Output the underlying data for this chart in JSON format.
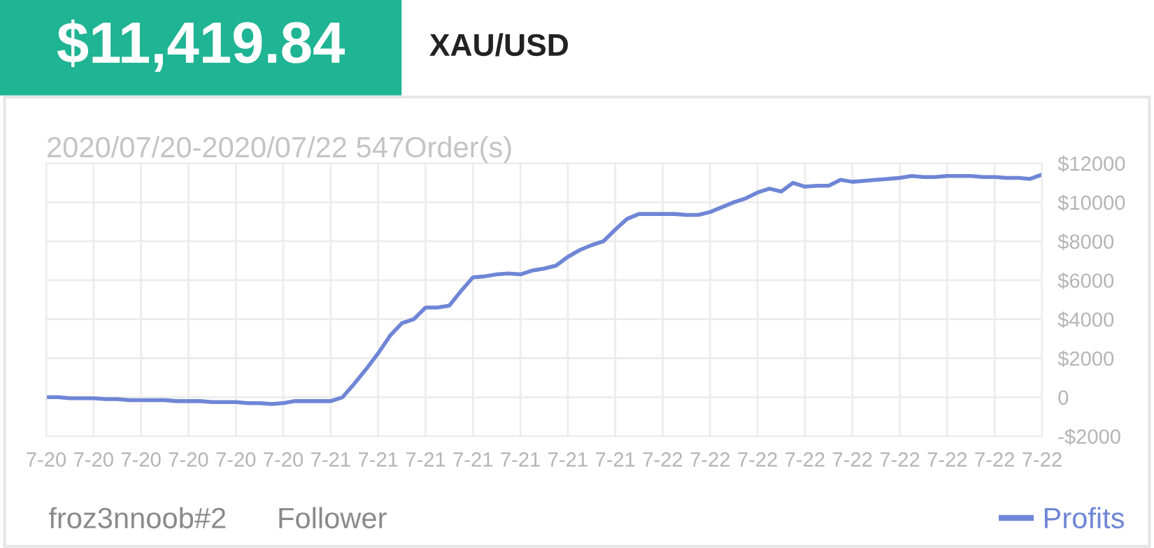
{
  "chart_data": {
    "type": "line",
    "title": "$11,419.84",
    "subtitle": "XAU/USD",
    "annotations": [
      "2020/07/20-2020/07/22 547Order(s)",
      "froz3nnoob#2",
      "Follower"
    ],
    "categories": [
      "7-20",
      null,
      null,
      null,
      "7-20",
      null,
      null,
      null,
      "7-20",
      null,
      null,
      null,
      "7-20",
      null,
      null,
      null,
      "7-20",
      null,
      null,
      null,
      "7-20",
      null,
      null,
      null,
      "7-21",
      null,
      null,
      null,
      "7-21",
      null,
      null,
      null,
      "7-21",
      null,
      null,
      null,
      "7-21",
      null,
      null,
      null,
      "7-21",
      null,
      null,
      null,
      "7-21",
      null,
      null,
      null,
      "7-21",
      null,
      null,
      null,
      "7-22",
      null,
      null,
      null,
      "7-22",
      null,
      null,
      null,
      "7-22",
      null,
      null,
      null,
      "7-22",
      null,
      null,
      null,
      "7-22",
      null,
      null,
      null,
      "7-22",
      null,
      null,
      null,
      "7-22",
      null,
      null,
      null,
      "7-22",
      null,
      null,
      null,
      "7-22"
    ],
    "ylim": [
      -2000,
      12000
    ],
    "yticks": [
      {
        "value": -2000,
        "label": "-$2000"
      },
      0,
      {
        "value": 2000,
        "label": "$2000"
      },
      {
        "value": 4000,
        "label": "$4000"
      },
      {
        "value": 6000,
        "label": "$6000"
      },
      {
        "value": 8000,
        "label": "$8000"
      },
      {
        "value": 10000,
        "label": "$10000"
      },
      {
        "value": 12000,
        "label": "$12000"
      }
    ],
    "grid": true,
    "legend": "bottom right",
    "marker": "none",
    "line_style": "solid",
    "series": [
      {
        "name": "Profits",
        "color": "#6f86d6",
        "values": [
          0,
          0,
          -50,
          -50,
          -50,
          -100,
          -100,
          -150,
          -150,
          -150,
          -150,
          -200,
          -200,
          -200,
          -250,
          -250,
          -250,
          -300,
          -300,
          -350,
          -300,
          -200,
          -200,
          -200,
          -200,
          0,
          700,
          1450,
          2250,
          3150,
          3800,
          4000,
          4600,
          4600,
          4700,
          5450,
          6150,
          6200,
          6300,
          6350,
          6300,
          6500,
          6600,
          6750,
          7200,
          7550,
          7800,
          8000,
          8600,
          9150,
          9400,
          9400,
          9400,
          9400,
          9350,
          9350,
          9500,
          9750,
          10000,
          10200,
          10500,
          10700,
          10550,
          11000,
          10800,
          10850,
          10850,
          11150,
          11050,
          11100,
          11150,
          11200,
          11250,
          11350,
          11300,
          11300,
          11350,
          11350,
          11350,
          11300,
          11300,
          11250,
          11250,
          11200,
          11420
        ]
      }
    ]
  }
}
